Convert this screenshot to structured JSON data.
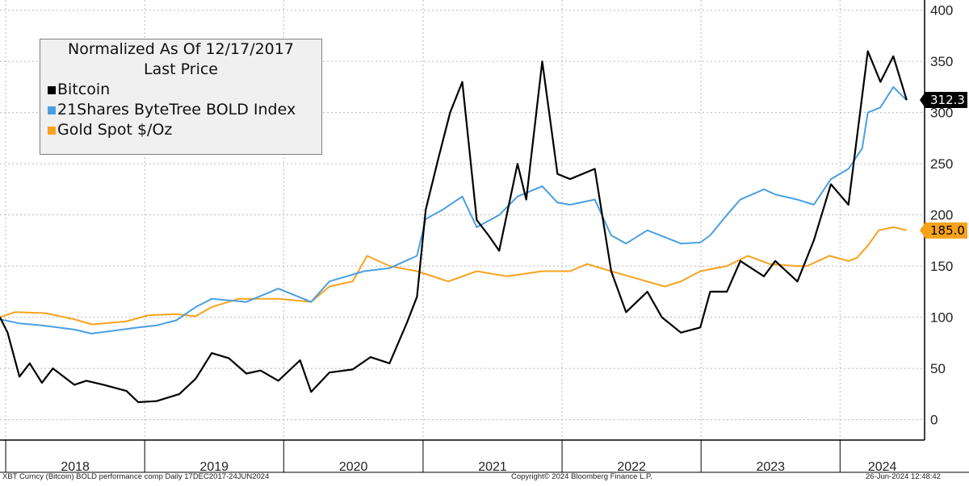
{
  "footer": {
    "left": "XBT Curncy (Bitcoin) BOLD performance comp  Daily 17DEC2017-24JUN2024",
    "center": "Copyright© 2024 Bloomberg Finance L.P.",
    "right": "26-Jun-2024 12:48:42"
  },
  "chart_data": {
    "type": "line",
    "legend": {
      "title_line1": "Normalized As Of 12/17/2017",
      "title_line2": "Last Price",
      "placement": "top-left"
    },
    "y_axis": {
      "position": "right",
      "ylim": [
        -20,
        410
      ],
      "ticks": [
        0,
        50,
        100,
        150,
        200,
        250,
        300,
        350,
        400
      ]
    },
    "x_axis": {
      "xlim": [
        "2017-12-17",
        "2024-08-10"
      ],
      "year_labels": [
        "2018",
        "2019",
        "2020",
        "2021",
        "2022",
        "2023",
        "2024"
      ]
    },
    "grid": true,
    "last_price_labels": [
      {
        "series": "Bitcoin",
        "text": "312.3",
        "value": 312.3,
        "color": "#000000"
      },
      {
        "series": "Gold Spot $/Oz",
        "text": "185.0",
        "value": 185.0,
        "color": "#f7a21c"
      }
    ],
    "series": [
      {
        "name": "Bitcoin",
        "color": "#000000",
        "x": [
          "2017-12-17",
          "2018-01-06",
          "2018-02-06",
          "2018-03-05",
          "2018-04-06",
          "2018-05-05",
          "2018-06-30",
          "2018-08-01",
          "2018-09-15",
          "2018-11-14",
          "2018-12-15",
          "2019-02-01",
          "2019-04-02",
          "2019-05-15",
          "2019-06-26",
          "2019-08-10",
          "2019-09-25",
          "2019-11-01",
          "2019-12-18",
          "2020-02-13",
          "2020-03-13",
          "2020-04-30",
          "2020-06-30",
          "2020-08-16",
          "2020-10-05",
          "2020-11-20",
          "2020-12-16",
          "2021-01-08",
          "2021-02-10",
          "2021-03-13",
          "2021-04-14",
          "2021-05-22",
          "2021-06-22",
          "2021-07-20",
          "2021-09-06",
          "2021-09-29",
          "2021-11-10",
          "2021-12-20",
          "2022-01-22",
          "2022-03-28",
          "2022-05-10",
          "2022-06-18",
          "2022-08-13",
          "2022-09-20",
          "2022-11-09",
          "2022-12-30",
          "2023-01-25",
          "2023-03-10",
          "2023-04-14",
          "2023-06-15",
          "2023-07-15",
          "2023-09-11",
          "2023-10-24",
          "2023-12-08",
          "2024-01-23",
          "2024-03-14",
          "2024-04-16",
          "2024-05-20",
          "2024-06-24"
        ],
        "values": [
          100,
          85,
          42,
          55,
          36,
          50,
          34,
          38,
          34,
          28,
          17,
          18,
          25,
          40,
          65,
          60,
          45,
          48,
          38,
          58,
          27,
          46,
          49,
          61,
          55,
          95,
          120,
          205,
          255,
          300,
          330,
          195,
          180,
          165,
          250,
          215,
          350,
          240,
          235,
          245,
          145,
          105,
          125,
          100,
          85,
          90,
          125,
          125,
          155,
          140,
          155,
          135,
          175,
          230,
          210,
          360,
          330,
          355,
          312.3
        ]
      },
      {
        "name": "21Shares ByteTree BOLD Index",
        "color": "#4a9fe3",
        "x": [
          "2017-12-17",
          "2018-02-06",
          "2018-04-06",
          "2018-06-30",
          "2018-08-14",
          "2018-10-15",
          "2018-12-15",
          "2019-02-01",
          "2019-03-25",
          "2019-05-15",
          "2019-06-26",
          "2019-09-25",
          "2019-12-18",
          "2020-03-13",
          "2020-04-30",
          "2020-07-30",
          "2020-10-05",
          "2020-12-16",
          "2021-01-08",
          "2021-02-21",
          "2021-04-14",
          "2021-05-22",
          "2021-07-20",
          "2021-09-06",
          "2021-11-10",
          "2021-12-20",
          "2022-01-22",
          "2022-03-28",
          "2022-05-10",
          "2022-06-18",
          "2022-08-13",
          "2022-11-09",
          "2022-12-30",
          "2023-01-25",
          "2023-03-10",
          "2023-04-14",
          "2023-06-15",
          "2023-07-15",
          "2023-09-11",
          "2023-10-24",
          "2023-12-08",
          "2024-01-23",
          "2024-02-28",
          "2024-03-14",
          "2024-04-16",
          "2024-05-20",
          "2024-06-24"
        ],
        "values": [
          98,
          94,
          92,
          88,
          84,
          87,
          90,
          92,
          97,
          110,
          118,
          115,
          128,
          115,
          135,
          145,
          148,
          160,
          196,
          205,
          218,
          188,
          200,
          218,
          228,
          212,
          210,
          215,
          180,
          172,
          185,
          172,
          173,
          180,
          200,
          215,
          225,
          220,
          215,
          210,
          235,
          245,
          265,
          300,
          305,
          325,
          312
        ]
      },
      {
        "name": "Gold Spot $/Oz",
        "color": "#f7a21c",
        "x": [
          "2017-12-17",
          "2018-01-25",
          "2018-04-15",
          "2018-06-30",
          "2018-08-16",
          "2018-11-14",
          "2019-01-11",
          "2019-03-25",
          "2019-05-15",
          "2019-06-26",
          "2019-09-04",
          "2019-12-18",
          "2020-03-13",
          "2020-04-30",
          "2020-06-30",
          "2020-08-07",
          "2020-10-05",
          "2020-12-16",
          "2021-03-08",
          "2021-05-22",
          "2021-08-09",
          "2021-11-10",
          "2022-01-22",
          "2022-03-08",
          "2022-05-10",
          "2022-07-15",
          "2022-09-28",
          "2022-11-09",
          "2022-12-30",
          "2023-03-10",
          "2023-05-04",
          "2023-06-30",
          "2023-09-11",
          "2023-10-06",
          "2023-12-04",
          "2024-01-23",
          "2024-02-14",
          "2024-03-14",
          "2024-04-12",
          "2024-05-20",
          "2024-06-24"
        ],
        "values": [
          100,
          105,
          104,
          98,
          93,
          96,
          102,
          103,
          101,
          110,
          118,
          118,
          115,
          130,
          135,
          160,
          150,
          145,
          135,
          145,
          140,
          145,
          145,
          152,
          145,
          138,
          130,
          135,
          145,
          150,
          160,
          152,
          150,
          150,
          160,
          155,
          158,
          170,
          185,
          188,
          185
        ]
      }
    ]
  }
}
